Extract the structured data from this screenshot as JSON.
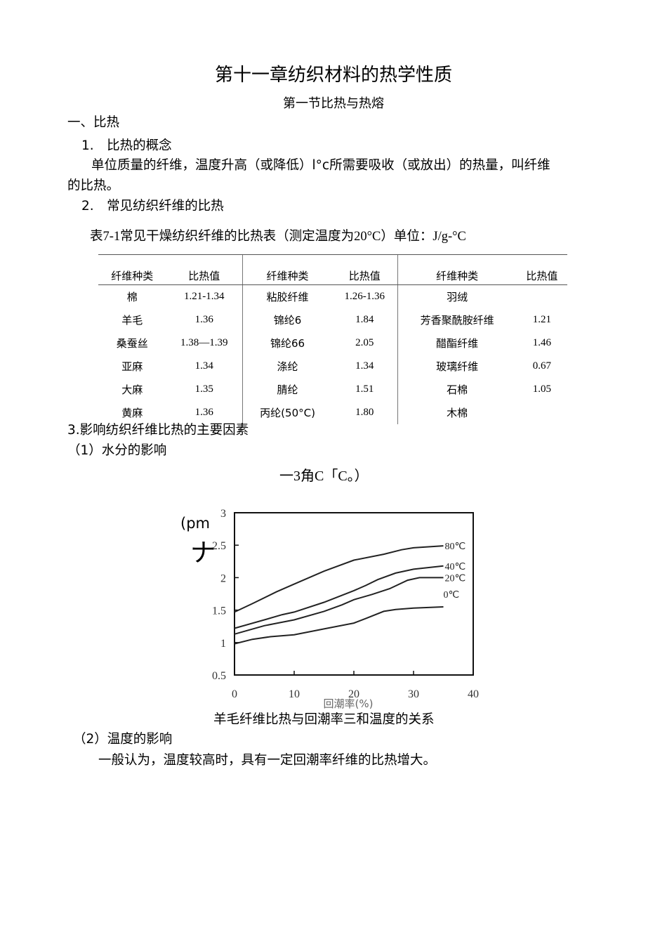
{
  "title": "第十一章纺织材料的热学性质",
  "subtitle": "第一节比热与热熔",
  "section1": "一、比热",
  "item1": "1.　比热的概念",
  "para1_line1": "单位质量的纤维，温度升高（或降低）l°c所需要吸收（或放出）的热量，叫纤维",
  "para1_line2": "的比热。",
  "item2": "2.　常见纺织纤维的比热",
  "table_caption": "表7-1常见干燥纺织纤维的比热表（测定温度为20°C）单位：J/g-°C",
  "table": {
    "headers": [
      "纤维种类",
      "比热值",
      "纤维种类",
      "比热值",
      "纤维种类",
      "比热值"
    ],
    "rows": [
      [
        "棉",
        "1.21-1.34",
        "粘胶纤维",
        "1.26-1.36",
        "羽绒",
        ""
      ],
      [
        "羊毛",
        "1.36",
        "锦纶6",
        "1.84",
        "芳香聚酰胺纤维",
        "1.21"
      ],
      [
        "桑蚕丝",
        "1.38—1.39",
        "锦纶66",
        "2.05",
        "醋酯纤维",
        "1.46"
      ],
      [
        "亚麻",
        "1.34",
        "涤纶",
        "1.34",
        "玻璃纤维",
        "0.67"
      ],
      [
        "大麻",
        "1.35",
        "腈纶",
        "1.51",
        "石棉",
        "1.05"
      ],
      [
        "黄麻",
        "1.36",
        "丙纶(50°C)",
        "1.80",
        "木棉",
        ""
      ]
    ]
  },
  "item3": "3.影响纺织纤维比热的主要因素",
  "sub1": "（1）水分的影响",
  "garbled_formula": "一3角C「C。）",
  "garbled_ylabel": "(pm",
  "garbled_glyph": "ナ",
  "chart_data": {
    "type": "line",
    "title": "",
    "xlabel": "回潮率(%)",
    "ylabel": "",
    "xlim": [
      0,
      40
    ],
    "ylim": [
      0.5,
      3
    ],
    "xticks": [
      "0",
      "10",
      "20",
      "30",
      "40"
    ],
    "yticks": [
      "0.5",
      "1",
      "1.5",
      "2",
      "2.5",
      "3"
    ],
    "grid": false,
    "series": [
      {
        "name": "80℃",
        "x": [
          0,
          3,
          7,
          10,
          15,
          20,
          25,
          28,
          30,
          35
        ],
        "y": [
          1.47,
          1.6,
          1.78,
          1.9,
          2.1,
          2.27,
          2.36,
          2.43,
          2.46,
          2.49
        ]
      },
      {
        "name": "40℃",
        "x": [
          0,
          5,
          8,
          10,
          15,
          20,
          22,
          24,
          27,
          30,
          35
        ],
        "y": [
          1.22,
          1.35,
          1.43,
          1.47,
          1.62,
          1.8,
          1.88,
          1.97,
          2.07,
          2.13,
          2.18
        ]
      },
      {
        "name": "20℃",
        "x": [
          0,
          5,
          10,
          15,
          18,
          20,
          23,
          26,
          29,
          31,
          35
        ],
        "y": [
          1.13,
          1.26,
          1.35,
          1.48,
          1.58,
          1.66,
          1.74,
          1.83,
          1.96,
          2.0,
          2.0
        ]
      },
      {
        "name": "0℃",
        "x": [
          0,
          3,
          6,
          10,
          15,
          20,
          22,
          25,
          27,
          30,
          35
        ],
        "y": [
          0.98,
          1.05,
          1.09,
          1.12,
          1.21,
          1.3,
          1.37,
          1.48,
          1.51,
          1.53,
          1.55
        ]
      }
    ]
  },
  "chart_caption": "羊毛纤维比热与回潮率三和温度的关系",
  "sub2": "（2）温度的影响",
  "para2": "一般认为，温度较高时，具有一定回潮率纤维的比热增大。"
}
